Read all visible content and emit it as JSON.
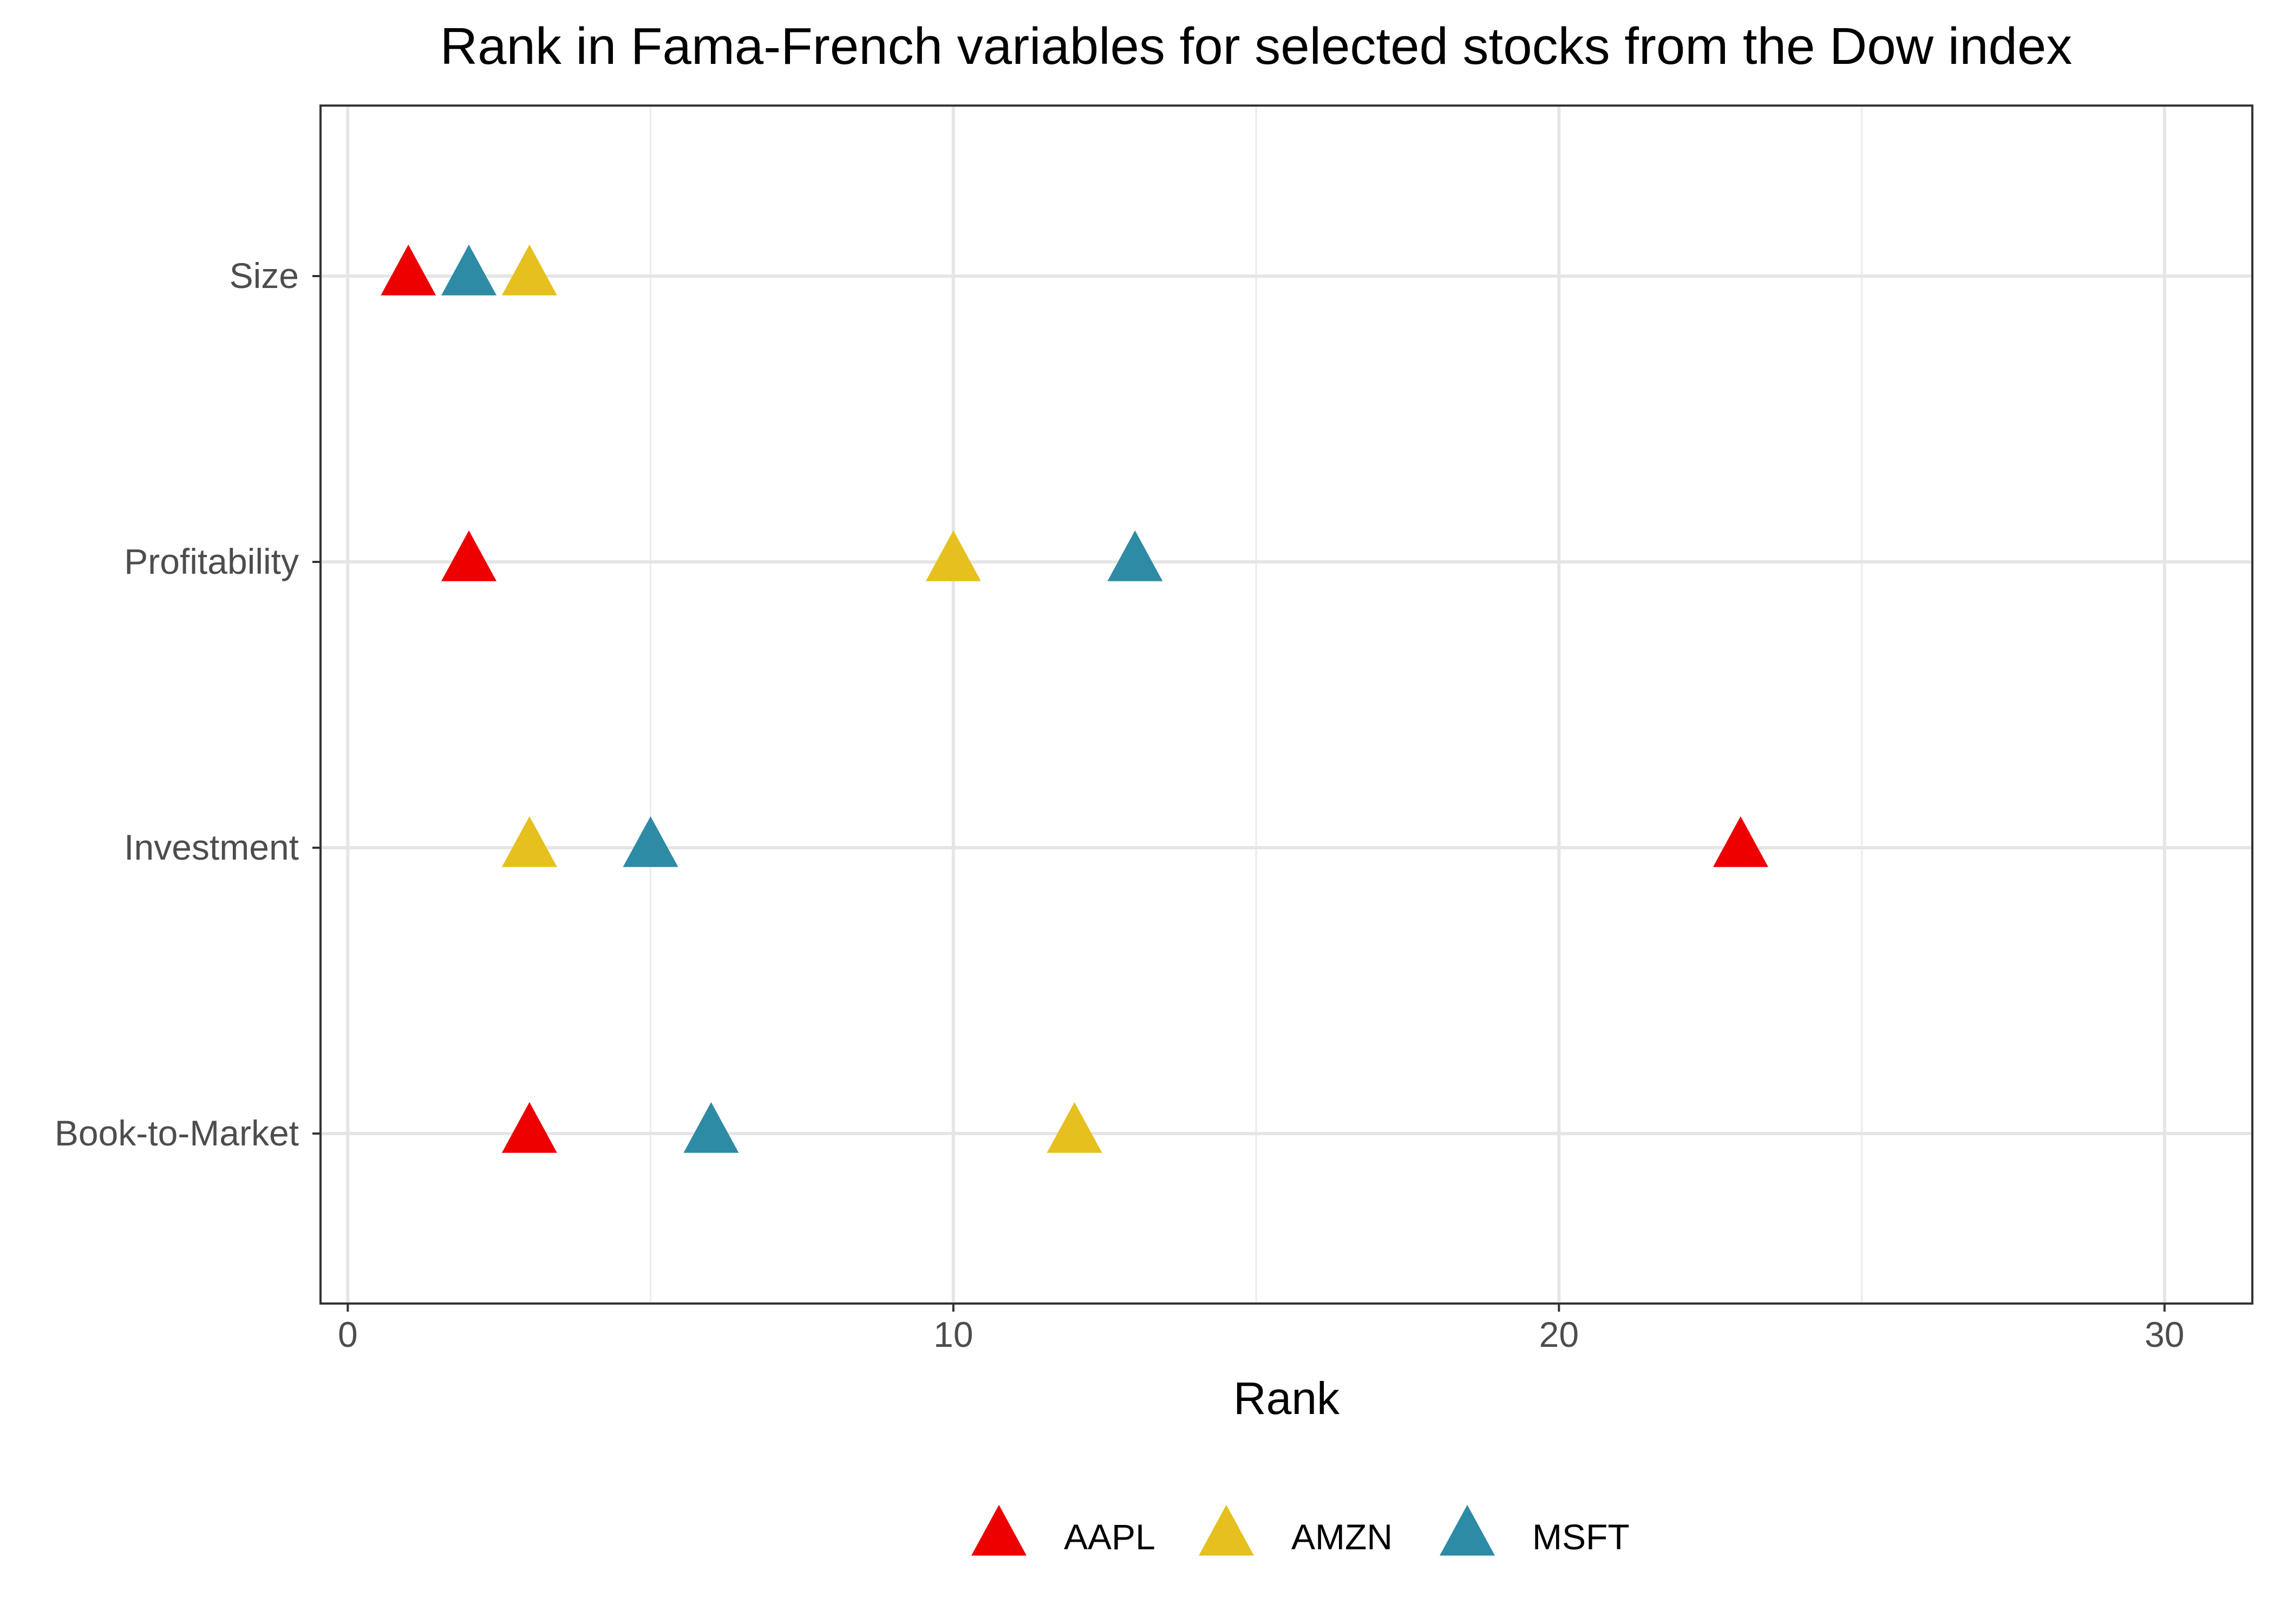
{
  "chart_data": {
    "type": "scatter",
    "title": "Rank in Fama-French variables for selected stocks from the Dow index",
    "xlabel": "Rank",
    "ylabel": "",
    "xlim": [
      -0.45,
      31.45
    ],
    "x_ticks": [
      0,
      10,
      20,
      30
    ],
    "x_tick_labels": [
      "0",
      "10",
      "20",
      "30"
    ],
    "categories": [
      "Size",
      "Profitability",
      "Investment",
      "Book-to-Market"
    ],
    "grid": true,
    "legend_position": "bottom",
    "marker": "triangle",
    "series": [
      {
        "name": "AAPL",
        "color": "#EE0000",
        "values": [
          1,
          2,
          23,
          3
        ]
      },
      {
        "name": "AMZN",
        "color": "#E5C01E",
        "values": [
          3,
          10,
          3,
          12
        ]
      },
      {
        "name": "MSFT",
        "color": "#2E8BA6",
        "values": [
          2,
          13,
          5,
          6
        ]
      }
    ]
  }
}
